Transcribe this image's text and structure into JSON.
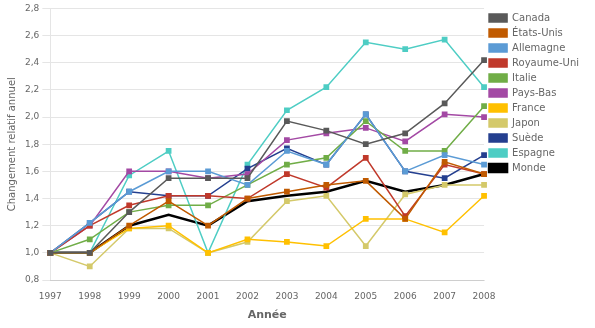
{
  "chart_data": {
    "type": "line",
    "xlabel": "Année",
    "ylabel": "Changement relatif annuel",
    "categories": [
      "1997",
      "1998",
      "1999",
      "2000",
      "2001",
      "2002",
      "2003",
      "2004",
      "2005",
      "2006",
      "2007",
      "2008"
    ],
    "series": [
      {
        "name": "Canada",
        "color": "#595959",
        "marker": "square",
        "values": [
          1.0,
          1.0,
          1.3,
          1.55,
          1.55,
          1.55,
          1.97,
          1.9,
          1.8,
          1.88,
          2.1,
          2.42
        ]
      },
      {
        "name": "États-Unis",
        "color": "#c05a00",
        "marker": "square",
        "values": [
          1.0,
          1.0,
          1.2,
          1.38,
          1.2,
          1.4,
          1.45,
          1.5,
          1.53,
          1.25,
          1.67,
          1.58
        ]
      },
      {
        "name": "Allemagne",
        "color": "#5b9bd5",
        "marker": "square",
        "values": [
          1.0,
          1.22,
          1.45,
          1.6,
          1.6,
          1.5,
          1.75,
          1.65,
          2.02,
          1.6,
          1.72,
          1.65
        ]
      },
      {
        "name": "Royaume-Uni",
        "color": "#c0392b",
        "marker": "square",
        "values": [
          1.0,
          1.2,
          1.35,
          1.42,
          1.42,
          1.4,
          1.58,
          1.48,
          1.7,
          1.27,
          1.65,
          1.58
        ]
      },
      {
        "name": "Italie",
        "color": "#70ad47",
        "marker": "square",
        "values": [
          1.0,
          1.1,
          1.3,
          1.35,
          1.35,
          1.5,
          1.65,
          1.7,
          1.97,
          1.75,
          1.75,
          2.08
        ]
      },
      {
        "name": "Pays-Bas",
        "color": "#a349a4",
        "marker": "square",
        "values": [
          1.0,
          1.2,
          1.6,
          1.6,
          1.55,
          1.58,
          1.83,
          1.88,
          1.92,
          1.82,
          2.02,
          2.0
        ]
      },
      {
        "name": "France",
        "color": "#ffc000",
        "marker": "square",
        "values": [
          1.0,
          1.0,
          1.18,
          1.2,
          1.0,
          1.1,
          1.08,
          1.05,
          1.25,
          1.25,
          1.15,
          1.42
        ]
      },
      {
        "name": "Japon",
        "color": "#d4c96a",
        "marker": "square",
        "values": [
          1.0,
          0.9,
          1.18,
          1.18,
          1.0,
          1.08,
          1.38,
          1.42,
          1.05,
          1.43,
          1.5,
          1.5
        ]
      },
      {
        "name": "Suède",
        "color": "#243f8f",
        "marker": "square",
        "values": [
          1.0,
          1.22,
          1.45,
          1.42,
          1.42,
          1.62,
          1.77,
          1.65,
          2.02,
          1.6,
          1.55,
          1.72
        ]
      },
      {
        "name": "Espagne",
        "color": "#4ecdc4",
        "marker": "square",
        "values": [
          1.0,
          1.0,
          1.57,
          1.75,
          1.0,
          1.65,
          2.05,
          2.22,
          2.55,
          2.5,
          2.57,
          2.22
        ]
      },
      {
        "name": "Monde",
        "color": "#000000",
        "marker": "none",
        "values": [
          1.0,
          1.0,
          1.2,
          1.28,
          1.2,
          1.38,
          1.42,
          1.45,
          1.53,
          1.45,
          1.5,
          1.58
        ]
      }
    ],
    "ylim": [
      0.8,
      2.8
    ],
    "yticks": [
      {
        "value": 0.8,
        "label": "0,8"
      },
      {
        "value": 1.0,
        "label": "1,0"
      },
      {
        "value": 1.2,
        "label": "1,2"
      },
      {
        "value": 1.4,
        "label": "1,4"
      },
      {
        "value": 1.6,
        "label": "1,6"
      },
      {
        "value": 1.8,
        "label": "1,8"
      },
      {
        "value": 2.0,
        "label": "2,0"
      },
      {
        "value": 2.2,
        "label": "2,2"
      },
      {
        "value": 2.4,
        "label": "2,4"
      },
      {
        "value": 2.6,
        "label": "2,6"
      },
      {
        "value": 2.8,
        "label": "2,8"
      }
    ],
    "grid": "y",
    "legend": "right"
  }
}
